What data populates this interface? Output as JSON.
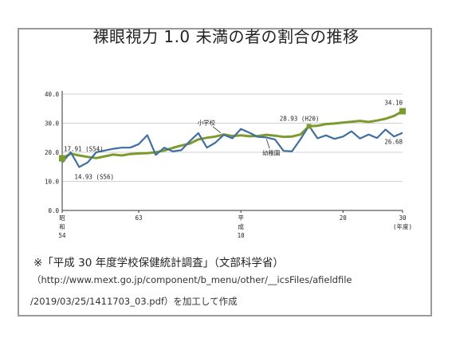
{
  "title": "裸眼視力 1.0 未満の者の割合の推移",
  "source": {
    "line1": "※「平成 30 年度学校保健統計調査」（文部科学省）",
    "line2": "（http://www.mext.go.jp/component/b_menu/other/__icsFiles/afieldfile",
    "line3": "/2019/03/25/1411703_03.pdf）を加工して作成"
  },
  "colors": {
    "elementary": "#7c9a2d",
    "kindergarten": "#3f6f9f",
    "grid": "#d0d0d0"
  },
  "chart_data": {
    "type": "line",
    "title": "裸眼視力 1.0 未満の者の割合の推移",
    "ylim": [
      0,
      40
    ],
    "yticks": [
      "0.0",
      "10.0",
      "20.0",
      "30.0",
      "40.0"
    ],
    "xlim": [
      0,
      40
    ],
    "xtick_labels": [
      {
        "x": 0,
        "label": "昭\n和\n54"
      },
      {
        "x": 9,
        "label": "63"
      },
      {
        "x": 21,
        "label": "平\n成\n10"
      },
      {
        "x": 33,
        "label": "20"
      },
      {
        "x": 40,
        "label": "30\n(年度)"
      }
    ],
    "grid": true,
    "series": [
      {
        "name": "小学校",
        "color_key": "elementary",
        "values": [
          17.91,
          19.5,
          18.9,
          18.4,
          18.0,
          18.6,
          19.2,
          18.9,
          19.4,
          19.6,
          19.7,
          20.0,
          20.6,
          21.5,
          22.3,
          23.0,
          24.4,
          25.0,
          25.4,
          26.1,
          25.6,
          25.8,
          25.5,
          25.6,
          26.0,
          25.7,
          25.3,
          25.4,
          26.1,
          28.93,
          29.1,
          29.7,
          29.9,
          30.2,
          30.5,
          30.8,
          30.4,
          30.9,
          31.5,
          32.5,
          34.1
        ]
      },
      {
        "name": "幼稚園",
        "color_key": "kindergarten",
        "values": [
          16.5,
          20.0,
          14.93,
          16.5,
          20.0,
          20.6,
          21.2,
          21.6,
          21.6,
          22.8,
          25.9,
          19.1,
          21.6,
          20.3,
          20.7,
          23.8,
          26.6,
          21.6,
          23.3,
          26.0,
          24.8,
          28.0,
          26.7,
          25.3,
          25.1,
          24.4,
          20.5,
          20.3,
          24.5,
          29.1,
          24.8,
          25.8,
          24.6,
          25.4,
          27.2,
          24.7,
          26.1,
          24.9,
          27.8,
          25.4,
          26.68
        ]
      }
    ],
    "annotations": [
      {
        "text": "17.91 (S54)",
        "series": 0,
        "index": 0
      },
      {
        "text": "14.93 (S56)",
        "series": 1,
        "index": 2
      },
      {
        "text": "小学校",
        "series": 0,
        "index": 19
      },
      {
        "text": "幼稚園",
        "series": 1,
        "index": 24
      },
      {
        "text": "28.93 (H20)",
        "series": 0,
        "index": 29
      },
      {
        "text": "34.10",
        "series": 0,
        "index": 40
      },
      {
        "text": "26.68",
        "series": 1,
        "index": 40
      }
    ]
  }
}
